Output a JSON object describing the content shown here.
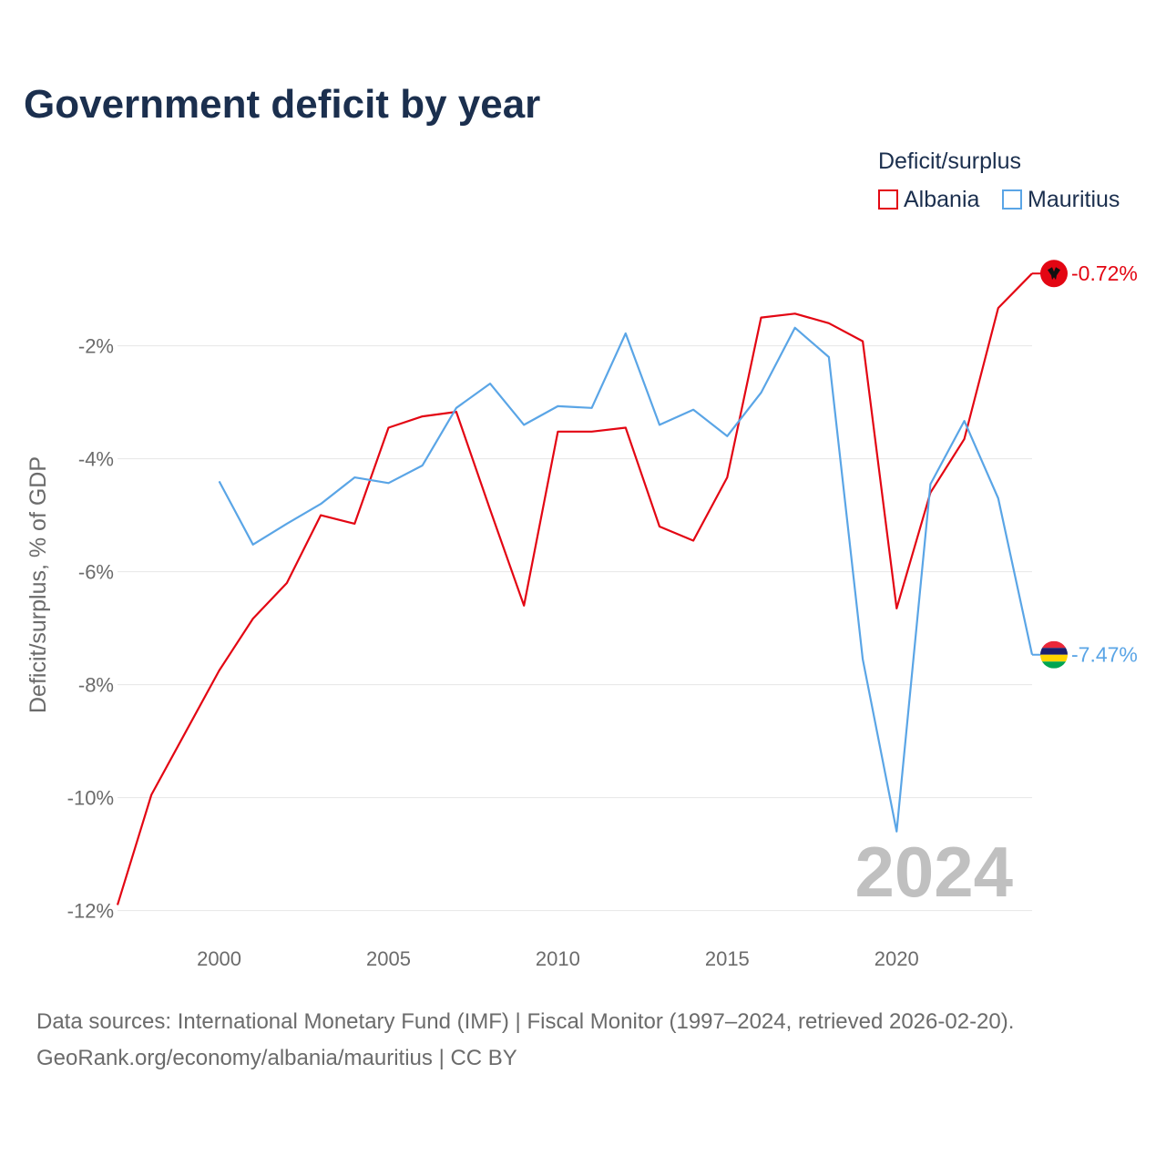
{
  "title": "Government deficit by year",
  "legend": {
    "title": "Deficit/surplus",
    "items": [
      {
        "label": "Albania",
        "color": "#e30613"
      },
      {
        "label": "Mauritius",
        "color": "#5aa5e6"
      }
    ]
  },
  "footer": {
    "line1": "Data sources: International Monetary Fund (IMF) | Fiscal Monitor (1997–2024, retrieved 2026-02-20).",
    "line2": "GeoRank.org/economy/albania/mauritius | CC BY"
  },
  "chart_data": {
    "type": "line",
    "title": "Government deficit by year",
    "ylabel": "Deficit/surplus, % of GDP",
    "xlabel": "",
    "xlim": [
      1997,
      2024
    ],
    "ylim": [
      -12.2,
      -0.2
    ],
    "y_ticks": [
      -2,
      -4,
      -6,
      -8,
      -10,
      -12
    ],
    "y_tick_labels": [
      "-2%",
      "-4%",
      "-6%",
      "-8%",
      "-10%",
      "-12%"
    ],
    "x_ticks": [
      2000,
      2005,
      2010,
      2015,
      2020
    ],
    "x_tick_labels": [
      "2000",
      "2005",
      "2010",
      "2015",
      "2020"
    ],
    "watermark": "2024",
    "series": [
      {
        "name": "Albania",
        "color": "#e30613",
        "end_label": "-0.72%",
        "x": [
          1997,
          1998,
          1999,
          2000,
          2001,
          2002,
          2003,
          2004,
          2005,
          2006,
          2007,
          2008,
          2009,
          2010,
          2011,
          2012,
          2013,
          2014,
          2015,
          2016,
          2017,
          2018,
          2019,
          2020,
          2021,
          2022,
          2023,
          2024
        ],
        "values": [
          -11.9,
          -9.95,
          -8.85,
          -7.75,
          -6.83,
          -6.2,
          -5.0,
          -5.15,
          -3.45,
          -3.25,
          -3.17,
          -4.9,
          -6.6,
          -3.52,
          -3.52,
          -3.45,
          -5.2,
          -5.45,
          -4.33,
          -1.5,
          -1.43,
          -1.6,
          -1.92,
          -6.65,
          -4.6,
          -3.65,
          -1.33,
          -0.72
        ]
      },
      {
        "name": "Mauritius",
        "color": "#5aa5e6",
        "end_label": "-7.47%",
        "x": [
          2000,
          2001,
          2002,
          2003,
          2004,
          2005,
          2006,
          2007,
          2008,
          2009,
          2010,
          2011,
          2012,
          2013,
          2014,
          2015,
          2016,
          2017,
          2018,
          2019,
          2020,
          2021,
          2022,
          2023,
          2024
        ],
        "values": [
          -4.4,
          -5.52,
          -5.15,
          -4.8,
          -4.33,
          -4.43,
          -4.12,
          -3.1,
          -2.67,
          -3.4,
          -3.07,
          -3.1,
          -1.78,
          -3.4,
          -3.13,
          -3.6,
          -2.83,
          -1.68,
          -2.2,
          -7.55,
          -10.6,
          -4.45,
          -3.33,
          -4.7,
          -7.47
        ]
      }
    ]
  }
}
